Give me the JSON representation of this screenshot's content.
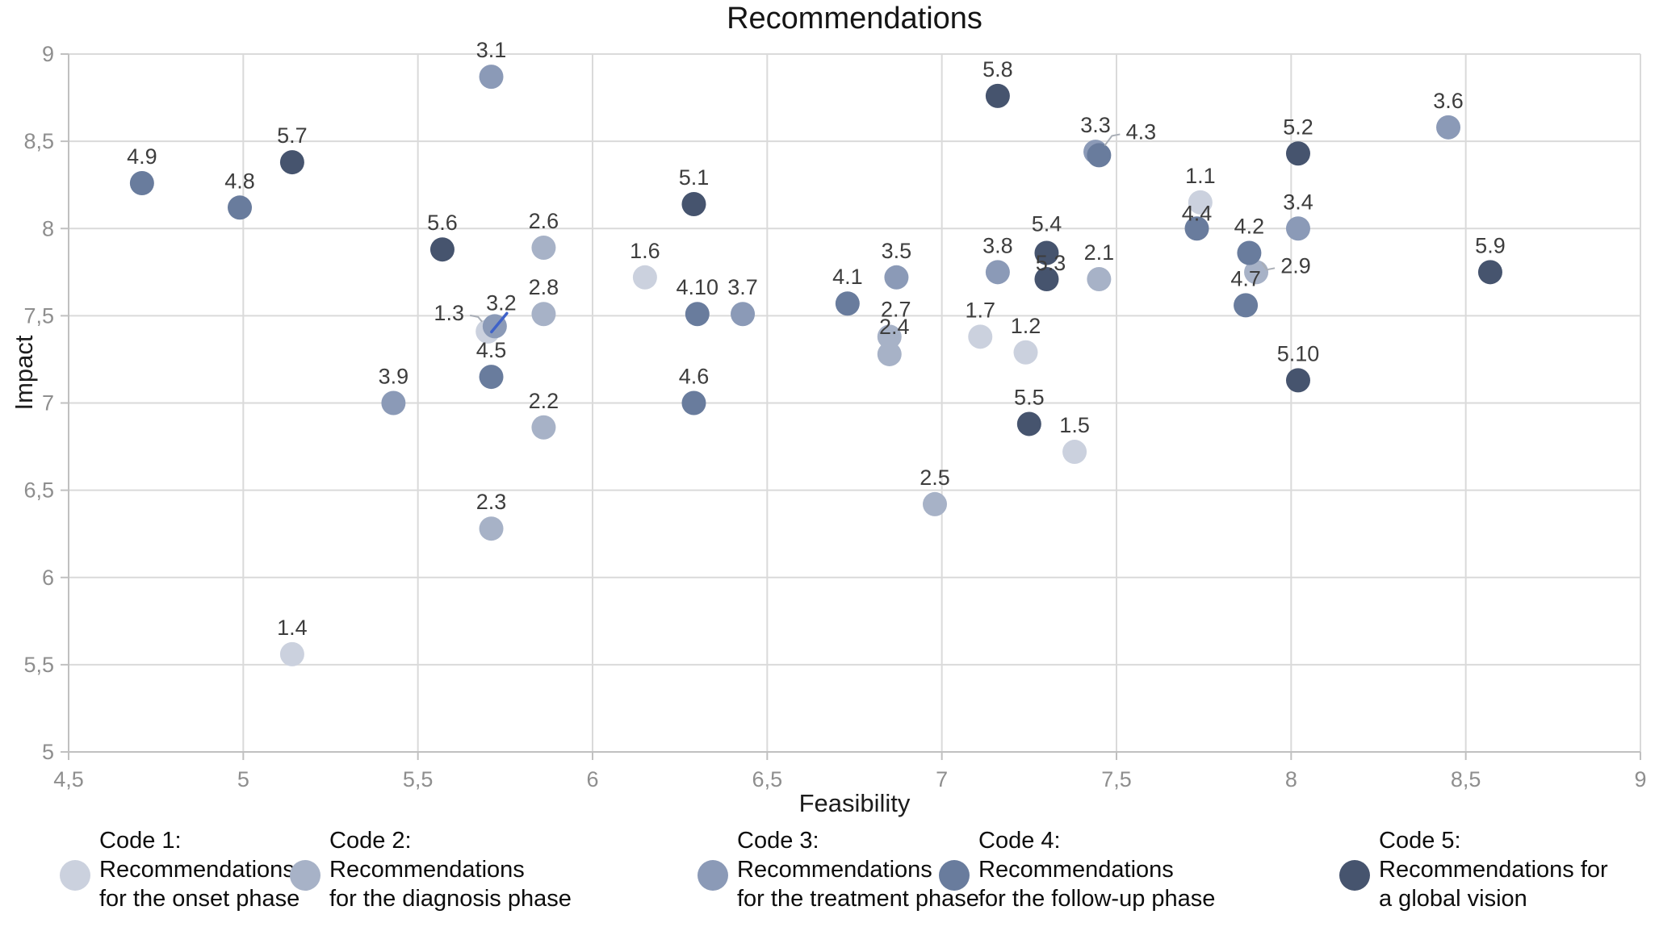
{
  "title": "Recommendations",
  "chart_data": {
    "type": "scatter",
    "title": "Recommendations",
    "xlabel": "Feasibility",
    "ylabel": "Impact",
    "xlim": [
      4.5,
      9
    ],
    "ylim": [
      5,
      9
    ],
    "grid": true,
    "legend_position": "bottom",
    "xtick_labels": [
      "4,5",
      "5",
      "5,5",
      "6",
      "6,5",
      "7",
      "7,5",
      "8",
      "8,5",
      "9"
    ],
    "ytick_labels": [
      "9",
      "8,5",
      "8",
      "7,5",
      "7",
      "6,5",
      "6",
      "5,5",
      "5"
    ],
    "series": [
      {
        "name": "Code 1: Recommendations for the onset phase",
        "color": "#cbd1de",
        "points": [
          {
            "label": "1.3",
            "x": 5.7,
            "y": 7.41,
            "dx": -48,
            "dy": -23,
            "leader": true
          },
          {
            "label": "1.1",
            "x": 7.74,
            "y": 8.15
          },
          {
            "label": "1.2",
            "x": 7.24,
            "y": 7.29
          },
          {
            "label": "1.4",
            "x": 5.14,
            "y": 5.56
          },
          {
            "label": "1.5",
            "x": 7.38,
            "y": 6.72
          },
          {
            "label": "1.6",
            "x": 6.15,
            "y": 7.72
          },
          {
            "label": "1.7",
            "x": 7.11,
            "y": 7.38
          }
        ]
      },
      {
        "name": "Code 2: Recommendations for the diagnosis phase",
        "color": "#a7b2c7",
        "points": [
          {
            "label": "2.1",
            "x": 7.45,
            "y": 7.71
          },
          {
            "label": "2.2",
            "x": 5.86,
            "y": 6.86
          },
          {
            "label": "2.3",
            "x": 5.71,
            "y": 6.28
          },
          {
            "label": "2.4",
            "x": 6.85,
            "y": 7.28,
            "dx": 6,
            "dy": -34
          },
          {
            "label": "2.5",
            "x": 6.98,
            "y": 6.42
          },
          {
            "label": "2.6",
            "x": 5.86,
            "y": 7.89
          },
          {
            "label": "2.7",
            "x": 6.85,
            "y": 7.38,
            "dx": 8,
            "dy": -34
          },
          {
            "label": "2.8",
            "x": 5.86,
            "y": 7.51
          },
          {
            "label": "2.9",
            "x": 7.9,
            "y": 7.75,
            "dx": 49,
            "dy": -8,
            "leader": true
          }
        ]
      },
      {
        "name": "Code 3: Recommendations for the treatment phase",
        "color": "#8b9ab7",
        "points": [
          {
            "label": "3.1",
            "x": 5.71,
            "y": 8.87
          },
          {
            "label": "3.2",
            "x": 5.72,
            "y": 7.44,
            "dx": 8,
            "dy": -29,
            "slash": true
          },
          {
            "label": "3.3",
            "x": 7.44,
            "y": 8.44
          },
          {
            "label": "3.4",
            "x": 8.02,
            "y": 8.0
          },
          {
            "label": "3.5",
            "x": 6.87,
            "y": 7.72
          },
          {
            "label": "3.6",
            "x": 8.45,
            "y": 8.58
          },
          {
            "label": "3.7",
            "x": 6.43,
            "y": 7.51
          },
          {
            "label": "3.8",
            "x": 7.16,
            "y": 7.75
          },
          {
            "label": "3.9",
            "x": 5.43,
            "y": 7.0
          }
        ]
      },
      {
        "name": "Code 4: Recommendations for the follow-up phase",
        "color": "#697c9d",
        "points": [
          {
            "label": "4.3",
            "x": 7.45,
            "y": 8.42,
            "dx": 52,
            "dy": -29,
            "leader": true
          },
          {
            "label": "4.1",
            "x": 6.73,
            "y": 7.57
          },
          {
            "label": "4.2",
            "x": 7.88,
            "y": 7.86
          },
          {
            "label": "4.4",
            "x": 7.73,
            "y": 8.0,
            "dy": -19
          },
          {
            "label": "4.5",
            "x": 5.71,
            "y": 7.15
          },
          {
            "label": "4.6",
            "x": 6.29,
            "y": 7.0
          },
          {
            "label": "4.7",
            "x": 7.87,
            "y": 7.56
          },
          {
            "label": "4.8",
            "x": 4.99,
            "y": 8.12
          },
          {
            "label": "4.9",
            "x": 4.71,
            "y": 8.26
          },
          {
            "label": "4.10",
            "x": 6.3,
            "y": 7.51
          }
        ]
      },
      {
        "name": "Code 5: Recommendations for a global vision",
        "color": "#46546e",
        "points": [
          {
            "label": "5.1",
            "x": 6.29,
            "y": 8.14
          },
          {
            "label": "5.2",
            "x": 8.02,
            "y": 8.43
          },
          {
            "label": "5.4",
            "x": 7.3,
            "y": 7.86,
            "dy": -36
          },
          {
            "label": "5.3",
            "x": 7.3,
            "y": 7.71,
            "dx": 5,
            "dy": -20
          },
          {
            "label": "5.5",
            "x": 7.25,
            "y": 6.88
          },
          {
            "label": "5.6",
            "x": 5.57,
            "y": 7.88
          },
          {
            "label": "5.7",
            "x": 5.14,
            "y": 8.38
          },
          {
            "label": "5.8",
            "x": 7.16,
            "y": 8.76
          },
          {
            "label": "5.9",
            "x": 8.57,
            "y": 7.75
          },
          {
            "label": "5.10",
            "x": 8.02,
            "y": 7.13
          }
        ]
      }
    ]
  },
  "legend": [
    {
      "color": "#cbd1de",
      "lines": [
        "Code 1:",
        "Recommendations",
        "for the onset phase"
      ]
    },
    {
      "color": "#a7b2c7",
      "lines": [
        "Code 2:",
        "Recommendations",
        "for the diagnosis phase"
      ]
    },
    {
      "color": "#8b9ab7",
      "lines": [
        "Code 3:",
        "Recommendations",
        "for the treatment phase"
      ]
    },
    {
      "color": "#697c9d",
      "lines": [
        "Code 4:",
        "Recommendations",
        "for the follow-up phase"
      ]
    },
    {
      "color": "#46546e",
      "lines": [
        "Code 5:",
        "Recommendations for",
        "a global vision"
      ]
    }
  ],
  "style_colors": {
    "grid": "#dadada",
    "axis": "#c0c0c0",
    "tick_text": "#8e8e8e",
    "point_label_text": "#3d3d3d",
    "leader_line": "#a9aeb6",
    "slash_mark": "#3f62c9"
  }
}
